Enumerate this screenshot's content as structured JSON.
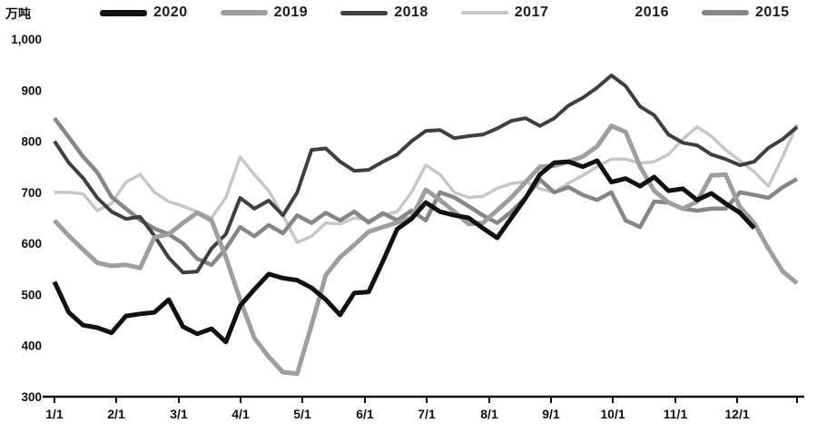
{
  "legend": {
    "items": [
      {
        "label": "2020",
        "color": "#111111",
        "swatch_height": 7
      },
      {
        "label": "2019",
        "color": "#9e9e9e",
        "swatch_height": 6
      },
      {
        "label": "2018",
        "color": "#3f3f3f",
        "swatch_height": 5
      },
      {
        "label": "2017",
        "color": "#c7c7c7",
        "swatch_height": 4
      },
      {
        "label": "2016",
        "color": "#ffffff",
        "swatch_height": 4
      },
      {
        "label": "2015",
        "color": "#868686",
        "swatch_height": 6
      }
    ]
  },
  "chart_data": {
    "type": "line",
    "title": "",
    "xlabel": "",
    "ylabel": "万吨",
    "ylim": [
      300,
      1000
    ],
    "grid": false,
    "legend_position": "top",
    "y_ticks": [
      {
        "label": "1,000",
        "value": 1000
      },
      {
        "label": "900",
        "value": 900
      },
      {
        "label": "800",
        "value": 800
      },
      {
        "label": "700",
        "value": 700
      },
      {
        "label": "600",
        "value": 600
      },
      {
        "label": "500",
        "value": 500
      },
      {
        "label": "400",
        "value": 400
      },
      {
        "label": "300",
        "value": 300
      }
    ],
    "x_tick_labels": [
      "1/1",
      "2/1",
      "3/1",
      "4/1",
      "5/1",
      "6/1",
      "7/1",
      "8/1",
      "9/1",
      "10/1",
      "11/1",
      "12/1"
    ],
    "x": [
      "1/1",
      "1/8",
      "1/15",
      "1/22",
      "1/29",
      "2/5",
      "2/12",
      "2/19",
      "2/26",
      "3/5",
      "3/12",
      "3/19",
      "3/26",
      "4/2",
      "4/9",
      "4/16",
      "4/23",
      "4/30",
      "5/7",
      "5/14",
      "5/21",
      "5/28",
      "6/4",
      "6/11",
      "6/18",
      "6/25",
      "7/2",
      "7/9",
      "7/16",
      "7/23",
      "7/30",
      "8/6",
      "8/13",
      "8/20",
      "8/27",
      "9/3",
      "9/10",
      "9/17",
      "9/24",
      "10/1",
      "10/8",
      "10/15",
      "10/22",
      "10/29",
      "11/5",
      "11/12",
      "11/19",
      "11/26",
      "12/3",
      "12/10",
      "12/17",
      "12/24",
      "12/31"
    ],
    "series": [
      {
        "name": "2020",
        "color": "#111111",
        "stroke_width": 5,
        "values": [
          525,
          465,
          440,
          435,
          425,
          458,
          462,
          465,
          490,
          437,
          423,
          433,
          407,
          478,
          510,
          540,
          532,
          528,
          513,
          490,
          460,
          503,
          505,
          565,
          628,
          648,
          680,
          662,
          655,
          650,
          630,
          611,
          650,
          689,
          735,
          758,
          760,
          750,
          762,
          720,
          727,
          712,
          730,
          703,
          707,
          685,
          698,
          678,
          660,
          630,
          null,
          null,
          null
        ]
      },
      {
        "name": "2019",
        "color": "#9e9e9e",
        "stroke_width": 5,
        "values": [
          645,
          615,
          588,
          562,
          556,
          558,
          552,
          612,
          618,
          640,
          660,
          645,
          573,
          490,
          415,
          378,
          348,
          345,
          440,
          538,
          573,
          597,
          623,
          632,
          641,
          650,
          705,
          685,
          662,
          638,
          640,
          665,
          690,
          720,
          750,
          752,
          760,
          770,
          790,
          830,
          818,
          751,
          703,
          680,
          668,
          682,
          733,
          735,
          671,
          640,
          590,
          545,
          522
        ]
      },
      {
        "name": "2018",
        "color": "#3f3f3f",
        "stroke_width": 4,
        "values": [
          800,
          758,
          728,
          689,
          662,
          648,
          652,
          615,
          572,
          543,
          545,
          590,
          618,
          689,
          668,
          684,
          655,
          700,
          783,
          786,
          760,
          742,
          744,
          760,
          774,
          800,
          820,
          822,
          806,
          810,
          813,
          825,
          840,
          845,
          830,
          845,
          870,
          885,
          905,
          929,
          908,
          868,
          851,
          813,
          797,
          792,
          774,
          765,
          753,
          760,
          787,
          804,
          828
        ]
      },
      {
        "name": "2017",
        "color": "#c7c7c7",
        "stroke_width": 3.5,
        "values": [
          700,
          700,
          697,
          664,
          678,
          720,
          735,
          700,
          682,
          673,
          662,
          650,
          690,
          769,
          735,
          703,
          655,
          602,
          614,
          640,
          638,
          650,
          645,
          655,
          662,
          700,
          753,
          735,
          700,
          690,
          692,
          708,
          717,
          721,
          707,
          700,
          718,
          733,
          750,
          765,
          765,
          757,
          760,
          774,
          804,
          828,
          810,
          783,
          762,
          740,
          712,
          770,
          833
        ]
      },
      {
        "name": "2016",
        "color": "#ffffff",
        "stroke_width": 3.5,
        "line_not_visible": true,
        "values": []
      },
      {
        "name": "2015",
        "color": "#868686",
        "stroke_width": 4.5,
        "values": [
          845,
          808,
          770,
          739,
          691,
          668,
          646,
          629,
          618,
          600,
          570,
          558,
          590,
          632,
          614,
          636,
          620,
          655,
          640,
          660,
          645,
          662,
          641,
          659,
          645,
          664,
          645,
          700,
          690,
          673,
          655,
          640,
          662,
          690,
          725,
          700,
          710,
          695,
          685,
          700,
          645,
          632,
          682,
          680,
          668,
          664,
          668,
          668,
          700,
          695,
          689,
          710,
          726
        ]
      }
    ]
  }
}
